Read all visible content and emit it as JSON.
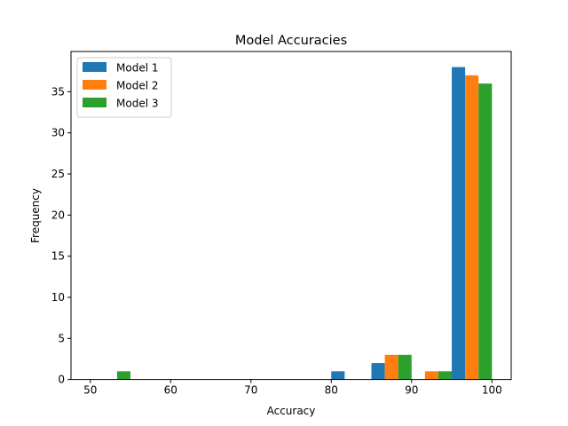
{
  "chart_data": {
    "type": "bar",
    "title": "Model Accuracies",
    "xlabel": "Accuracy",
    "ylabel": "Frequency",
    "xlim": [
      47.6,
      102.4
    ],
    "ylim": [
      0,
      39.9
    ],
    "x_ticks": [
      50,
      60,
      70,
      80,
      90,
      100
    ],
    "y_ticks": [
      0,
      5,
      10,
      15,
      20,
      25,
      30,
      35
    ],
    "grid": false,
    "legend_position": "top-left",
    "bin_edges": [
      50,
      55,
      60,
      65,
      70,
      75,
      80,
      85,
      90,
      95,
      100
    ],
    "series": [
      {
        "name": "Model 1",
        "color": "#1f77b4",
        "values": [
          0,
          0,
          0,
          0,
          0,
          0,
          1,
          2,
          0,
          38
        ]
      },
      {
        "name": "Model 2",
        "color": "#ff7f0e",
        "values": [
          0,
          0,
          0,
          0,
          0,
          0,
          0,
          3,
          1,
          37
        ]
      },
      {
        "name": "Model 3",
        "color": "#2ca02c",
        "values": [
          1,
          0,
          0,
          0,
          0,
          0,
          0,
          3,
          1,
          36
        ]
      }
    ]
  }
}
